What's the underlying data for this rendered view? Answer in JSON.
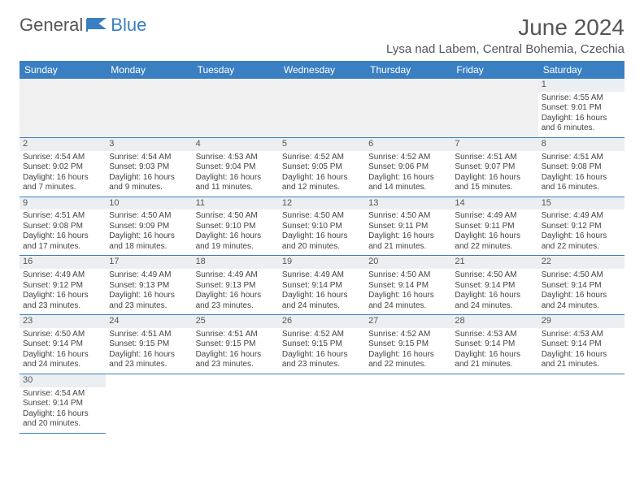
{
  "brand": {
    "part1": "General",
    "part2": "Blue"
  },
  "title": "June 2024",
  "location": "Lysa nad Labem, Central Bohemia, Czechia",
  "colors": {
    "header_bg": "#3a7fc2",
    "text": "#444444",
    "daybar_bg": "#eceff1",
    "empty_bg": "#f0f0f0"
  },
  "day_headers": [
    "Sunday",
    "Monday",
    "Tuesday",
    "Wednesday",
    "Thursday",
    "Friday",
    "Saturday"
  ],
  "weeks": [
    [
      null,
      null,
      null,
      null,
      null,
      null,
      {
        "n": "1",
        "sr": "Sunrise: 4:55 AM",
        "ss": "Sunset: 9:01 PM",
        "d1": "Daylight: 16 hours",
        "d2": "and 6 minutes."
      }
    ],
    [
      {
        "n": "2",
        "sr": "Sunrise: 4:54 AM",
        "ss": "Sunset: 9:02 PM",
        "d1": "Daylight: 16 hours",
        "d2": "and 7 minutes."
      },
      {
        "n": "3",
        "sr": "Sunrise: 4:54 AM",
        "ss": "Sunset: 9:03 PM",
        "d1": "Daylight: 16 hours",
        "d2": "and 9 minutes."
      },
      {
        "n": "4",
        "sr": "Sunrise: 4:53 AM",
        "ss": "Sunset: 9:04 PM",
        "d1": "Daylight: 16 hours",
        "d2": "and 11 minutes."
      },
      {
        "n": "5",
        "sr": "Sunrise: 4:52 AM",
        "ss": "Sunset: 9:05 PM",
        "d1": "Daylight: 16 hours",
        "d2": "and 12 minutes."
      },
      {
        "n": "6",
        "sr": "Sunrise: 4:52 AM",
        "ss": "Sunset: 9:06 PM",
        "d1": "Daylight: 16 hours",
        "d2": "and 14 minutes."
      },
      {
        "n": "7",
        "sr": "Sunrise: 4:51 AM",
        "ss": "Sunset: 9:07 PM",
        "d1": "Daylight: 16 hours",
        "d2": "and 15 minutes."
      },
      {
        "n": "8",
        "sr": "Sunrise: 4:51 AM",
        "ss": "Sunset: 9:08 PM",
        "d1": "Daylight: 16 hours",
        "d2": "and 16 minutes."
      }
    ],
    [
      {
        "n": "9",
        "sr": "Sunrise: 4:51 AM",
        "ss": "Sunset: 9:08 PM",
        "d1": "Daylight: 16 hours",
        "d2": "and 17 minutes."
      },
      {
        "n": "10",
        "sr": "Sunrise: 4:50 AM",
        "ss": "Sunset: 9:09 PM",
        "d1": "Daylight: 16 hours",
        "d2": "and 18 minutes."
      },
      {
        "n": "11",
        "sr": "Sunrise: 4:50 AM",
        "ss": "Sunset: 9:10 PM",
        "d1": "Daylight: 16 hours",
        "d2": "and 19 minutes."
      },
      {
        "n": "12",
        "sr": "Sunrise: 4:50 AM",
        "ss": "Sunset: 9:10 PM",
        "d1": "Daylight: 16 hours",
        "d2": "and 20 minutes."
      },
      {
        "n": "13",
        "sr": "Sunrise: 4:50 AM",
        "ss": "Sunset: 9:11 PM",
        "d1": "Daylight: 16 hours",
        "d2": "and 21 minutes."
      },
      {
        "n": "14",
        "sr": "Sunrise: 4:49 AM",
        "ss": "Sunset: 9:11 PM",
        "d1": "Daylight: 16 hours",
        "d2": "and 22 minutes."
      },
      {
        "n": "15",
        "sr": "Sunrise: 4:49 AM",
        "ss": "Sunset: 9:12 PM",
        "d1": "Daylight: 16 hours",
        "d2": "and 22 minutes."
      }
    ],
    [
      {
        "n": "16",
        "sr": "Sunrise: 4:49 AM",
        "ss": "Sunset: 9:12 PM",
        "d1": "Daylight: 16 hours",
        "d2": "and 23 minutes."
      },
      {
        "n": "17",
        "sr": "Sunrise: 4:49 AM",
        "ss": "Sunset: 9:13 PM",
        "d1": "Daylight: 16 hours",
        "d2": "and 23 minutes."
      },
      {
        "n": "18",
        "sr": "Sunrise: 4:49 AM",
        "ss": "Sunset: 9:13 PM",
        "d1": "Daylight: 16 hours",
        "d2": "and 23 minutes."
      },
      {
        "n": "19",
        "sr": "Sunrise: 4:49 AM",
        "ss": "Sunset: 9:14 PM",
        "d1": "Daylight: 16 hours",
        "d2": "and 24 minutes."
      },
      {
        "n": "20",
        "sr": "Sunrise: 4:50 AM",
        "ss": "Sunset: 9:14 PM",
        "d1": "Daylight: 16 hours",
        "d2": "and 24 minutes."
      },
      {
        "n": "21",
        "sr": "Sunrise: 4:50 AM",
        "ss": "Sunset: 9:14 PM",
        "d1": "Daylight: 16 hours",
        "d2": "and 24 minutes."
      },
      {
        "n": "22",
        "sr": "Sunrise: 4:50 AM",
        "ss": "Sunset: 9:14 PM",
        "d1": "Daylight: 16 hours",
        "d2": "and 24 minutes."
      }
    ],
    [
      {
        "n": "23",
        "sr": "Sunrise: 4:50 AM",
        "ss": "Sunset: 9:14 PM",
        "d1": "Daylight: 16 hours",
        "d2": "and 24 minutes."
      },
      {
        "n": "24",
        "sr": "Sunrise: 4:51 AM",
        "ss": "Sunset: 9:15 PM",
        "d1": "Daylight: 16 hours",
        "d2": "and 23 minutes."
      },
      {
        "n": "25",
        "sr": "Sunrise: 4:51 AM",
        "ss": "Sunset: 9:15 PM",
        "d1": "Daylight: 16 hours",
        "d2": "and 23 minutes."
      },
      {
        "n": "26",
        "sr": "Sunrise: 4:52 AM",
        "ss": "Sunset: 9:15 PM",
        "d1": "Daylight: 16 hours",
        "d2": "and 23 minutes."
      },
      {
        "n": "27",
        "sr": "Sunrise: 4:52 AM",
        "ss": "Sunset: 9:15 PM",
        "d1": "Daylight: 16 hours",
        "d2": "and 22 minutes."
      },
      {
        "n": "28",
        "sr": "Sunrise: 4:53 AM",
        "ss": "Sunset: 9:14 PM",
        "d1": "Daylight: 16 hours",
        "d2": "and 21 minutes."
      },
      {
        "n": "29",
        "sr": "Sunrise: 4:53 AM",
        "ss": "Sunset: 9:14 PM",
        "d1": "Daylight: 16 hours",
        "d2": "and 21 minutes."
      }
    ],
    [
      {
        "n": "30",
        "sr": "Sunrise: 4:54 AM",
        "ss": "Sunset: 9:14 PM",
        "d1": "Daylight: 16 hours",
        "d2": "and 20 minutes."
      },
      null,
      null,
      null,
      null,
      null,
      null
    ]
  ]
}
